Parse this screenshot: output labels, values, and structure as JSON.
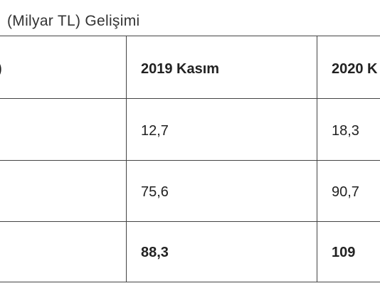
{
  "header": {
    "title": "(Milyar TL) Gelişimi"
  },
  "table": {
    "header": [
      ")",
      "2019 Kasım",
      "2020 K"
    ],
    "rows": [
      [
        "12,7",
        "18,3"
      ],
      [
        "75,6",
        "90,7"
      ],
      [
        "88,3",
        "109"
      ]
    ]
  }
}
